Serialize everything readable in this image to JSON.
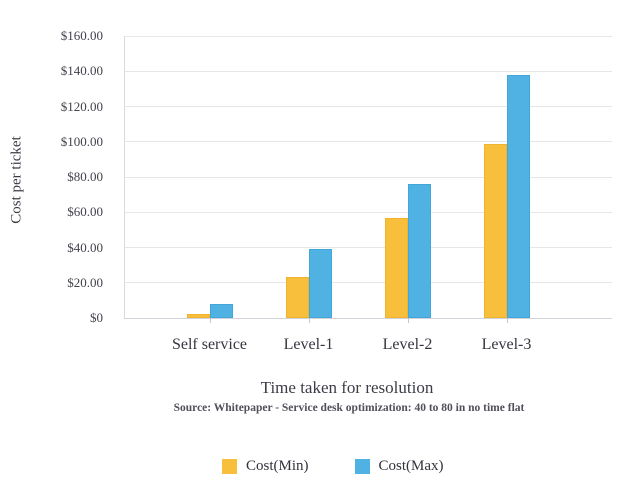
{
  "chart_data": {
    "type": "bar",
    "title": "",
    "categories": [
      "Self service",
      "Level-1",
      "Level-2",
      "Level-3"
    ],
    "series": [
      {
        "name": "Cost(Min)",
        "color": "#F7BF3B",
        "border_color": "#f0b32c",
        "values": [
          2,
          23,
          57,
          99
        ]
      },
      {
        "name": "Cost(Max)",
        "color": "#4FB2E3",
        "border_color": "#41a6da",
        "values": [
          8,
          39,
          76,
          138
        ]
      }
    ],
    "xlabel": "Time taken for resolution",
    "ylabel": "Cost per ticket",
    "ylim": [
      0,
      160
    ],
    "ytick_step": 20,
    "ytick_labels": [
      "$0",
      "$20.00",
      "$40.00",
      "$60.00",
      "$80.00",
      "$100.00",
      "$120.00",
      "$140.00",
      "$160.00"
    ],
    "grid": true,
    "legend_position": "bottom",
    "source_note": "Source: Whitepaper - Service desk optimization: 40 to 80 in no time flat"
  }
}
